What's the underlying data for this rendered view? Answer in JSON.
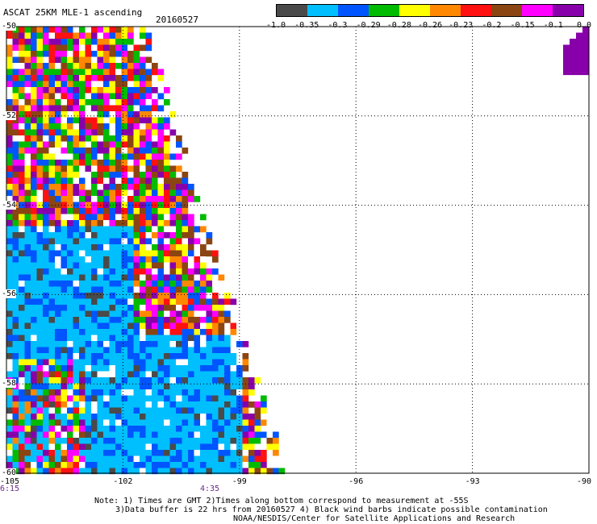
{
  "header": {
    "title": "ASCAT 25KM MLE-1 ascending",
    "date": "20160527"
  },
  "colorbar": {
    "colors": [
      "#4a4a4a",
      "#00bfff",
      "#0055ff",
      "#00bb00",
      "#ffff00",
      "#ff8800",
      "#ff1111",
      "#8b4513",
      "#ff00ff",
      "#8800aa"
    ],
    "labels": [
      "-1.0",
      "-0.35",
      "-0.3",
      "-0.29",
      "-0.28",
      "-0.26",
      "-0.23",
      "-0.2",
      "-0.15",
      "-0.1",
      "0.0"
    ]
  },
  "axes": {
    "y_ticks": [
      "-50",
      "-52",
      "-54",
      "-56",
      "-58",
      "-60"
    ],
    "x_ticks": [
      "-105",
      "-102",
      "-99",
      "-96",
      "-93",
      "-90"
    ],
    "time_labels": [
      "6:15",
      "4:35"
    ]
  },
  "notes": {
    "line1": "Note: 1) Times are GMT 2)Times along bottom correspond to measurement at -55S",
    "line2": "3)Data buffer is 22 hrs from 20160527 4) Black wind barbs indicate possible contamination",
    "line3": "NOAA/NESDIS/Center for Satellite Applications and Research"
  }
}
